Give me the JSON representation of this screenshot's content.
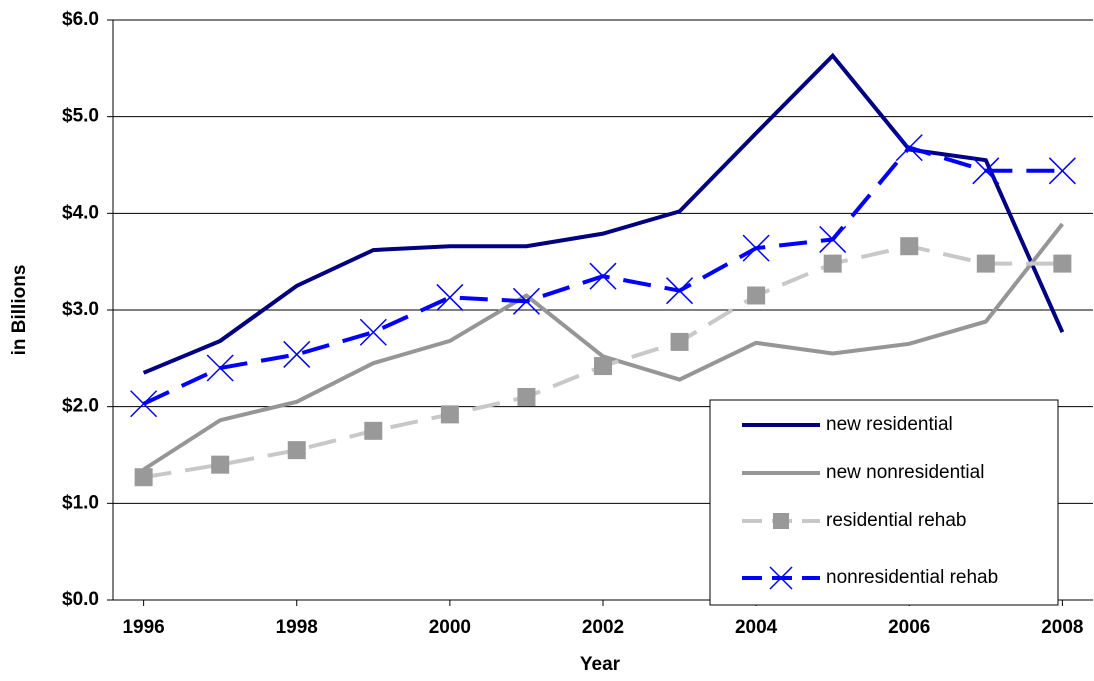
{
  "chart_data": {
    "type": "line",
    "x_label": "Year",
    "y_label": "in Billions",
    "x": [
      1996,
      1997,
      1998,
      1999,
      2000,
      2001,
      2002,
      2003,
      2004,
      2005,
      2006,
      2007,
      2008
    ],
    "xlim": [
      1995.6,
      2008.4
    ],
    "xticks": [
      1996,
      1998,
      2000,
      2002,
      2004,
      2006,
      2008
    ],
    "ylim": [
      0,
      6
    ],
    "yticks": [
      {
        "value": 0,
        "label": "$0.0"
      },
      {
        "value": 1,
        "label": "$1.0"
      },
      {
        "value": 2,
        "label": "$2.0"
      },
      {
        "value": 3,
        "label": "$3.0"
      },
      {
        "value": 4,
        "label": "$4.0"
      },
      {
        "value": 5,
        "label": "$5.0"
      },
      {
        "value": 6,
        "label": "$6.0"
      }
    ],
    "grid": true,
    "legend": "lower right",
    "series": [
      {
        "name": "new residential",
        "color": "#000080",
        "dashed": false,
        "marker": null,
        "values": [
          2.35,
          2.68,
          3.25,
          3.62,
          3.66,
          3.66,
          3.79,
          4.02,
          4.83,
          5.63,
          4.66,
          4.55,
          2.77
        ]
      },
      {
        "name": "new nonresidential",
        "color": "#969696",
        "dashed": false,
        "marker": null,
        "values": [
          1.35,
          1.86,
          2.05,
          2.45,
          2.68,
          3.15,
          2.52,
          2.28,
          2.66,
          2.55,
          2.65,
          2.88,
          3.89
        ]
      },
      {
        "name": "residential rehab",
        "color": "#c8c8c8",
        "dashed": true,
        "marker": "square",
        "marker_color": "#999999",
        "values": [
          1.27,
          1.4,
          1.55,
          1.75,
          1.92,
          2.1,
          2.42,
          2.67,
          3.15,
          3.48,
          3.66,
          3.48,
          3.48
        ]
      },
      {
        "name": "nonresidential rehab",
        "color": "#0000ff",
        "dashed": true,
        "marker": "x",
        "marker_color": "#0000ff",
        "values": [
          2.03,
          2.4,
          2.54,
          2.77,
          3.13,
          3.09,
          3.35,
          3.2,
          3.64,
          3.73,
          4.68,
          4.44,
          4.44
        ]
      }
    ]
  }
}
